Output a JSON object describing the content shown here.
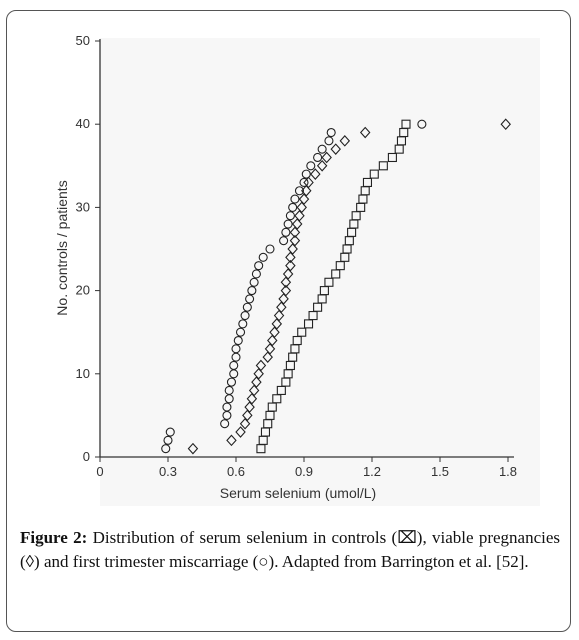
{
  "caption": {
    "label": "Figure 2:",
    "text": " Distribution of serum selenium in controls (⌧), viable pregnancies (◊) and first trimester miscarriage (○). Adapted from Barrington et al. [52]."
  },
  "chart_data": {
    "type": "scatter",
    "title": "",
    "xlabel": "Serum selenium (umol/L)",
    "ylabel": "No. controls / patients",
    "xlim": [
      0,
      1.8
    ],
    "ylim": [
      0,
      50
    ],
    "x_ticks": [
      "0",
      "0.3",
      "0.6",
      "0.9",
      "1.2",
      "1.5",
      "1.8"
    ],
    "y_ticks": [
      "0",
      "10",
      "20",
      "30",
      "40",
      "50"
    ],
    "grid": false,
    "colors": {
      "marker": "#222222",
      "axis": "#333333"
    },
    "series": [
      {
        "marker": "square",
        "points": [
          [
            0.71,
            1
          ],
          [
            0.72,
            2
          ],
          [
            0.73,
            3
          ],
          [
            0.74,
            4
          ],
          [
            0.75,
            5
          ],
          [
            0.76,
            6
          ],
          [
            0.78,
            7
          ],
          [
            0.8,
            8
          ],
          [
            0.82,
            9
          ],
          [
            0.83,
            10
          ],
          [
            0.84,
            11
          ],
          [
            0.85,
            12
          ],
          [
            0.86,
            13
          ],
          [
            0.87,
            14
          ],
          [
            0.89,
            15
          ],
          [
            0.92,
            16
          ],
          [
            0.94,
            17
          ],
          [
            0.96,
            18
          ],
          [
            0.98,
            19
          ],
          [
            0.99,
            20
          ],
          [
            1.01,
            21
          ],
          [
            1.04,
            22
          ],
          [
            1.06,
            23
          ],
          [
            1.08,
            24
          ],
          [
            1.09,
            25
          ],
          [
            1.1,
            26
          ],
          [
            1.11,
            27
          ],
          [
            1.12,
            28
          ],
          [
            1.13,
            29
          ],
          [
            1.15,
            30
          ],
          [
            1.16,
            31
          ],
          [
            1.17,
            32
          ],
          [
            1.18,
            33
          ],
          [
            1.21,
            34
          ],
          [
            1.25,
            35
          ],
          [
            1.29,
            36
          ],
          [
            1.32,
            37
          ],
          [
            1.33,
            38
          ],
          [
            1.34,
            39
          ],
          [
            1.35,
            40
          ]
        ]
      },
      {
        "marker": "diamond",
        "points": [
          [
            0.41,
            1
          ],
          [
            0.58,
            2
          ],
          [
            0.62,
            3
          ],
          [
            0.64,
            4
          ],
          [
            0.65,
            5
          ],
          [
            0.66,
            6
          ],
          [
            0.67,
            7
          ],
          [
            0.68,
            8
          ],
          [
            0.69,
            9
          ],
          [
            0.7,
            10
          ],
          [
            0.71,
            11
          ],
          [
            0.74,
            12
          ],
          [
            0.75,
            13
          ],
          [
            0.76,
            14
          ],
          [
            0.77,
            15
          ],
          [
            0.78,
            16
          ],
          [
            0.79,
            17
          ],
          [
            0.8,
            18
          ],
          [
            0.81,
            19
          ],
          [
            0.82,
            20
          ],
          [
            0.82,
            21
          ],
          [
            0.83,
            22
          ],
          [
            0.84,
            23
          ],
          [
            0.84,
            24
          ],
          [
            0.85,
            25
          ],
          [
            0.86,
            26
          ],
          [
            0.86,
            27
          ],
          [
            0.87,
            28
          ],
          [
            0.88,
            29
          ],
          [
            0.89,
            30
          ],
          [
            0.9,
            31
          ],
          [
            0.91,
            32
          ],
          [
            0.92,
            33
          ],
          [
            0.95,
            34
          ],
          [
            0.98,
            35
          ],
          [
            1.0,
            36
          ],
          [
            1.04,
            37
          ],
          [
            1.08,
            38
          ],
          [
            1.17,
            39
          ],
          [
            1.79,
            40
          ]
        ]
      },
      {
        "marker": "circle",
        "points": [
          [
            0.29,
            1
          ],
          [
            0.3,
            2
          ],
          [
            0.31,
            3
          ],
          [
            0.55,
            4
          ],
          [
            0.56,
            5
          ],
          [
            0.56,
            6
          ],
          [
            0.57,
            7
          ],
          [
            0.57,
            8
          ],
          [
            0.58,
            9
          ],
          [
            0.59,
            10
          ],
          [
            0.59,
            11
          ],
          [
            0.6,
            12
          ],
          [
            0.6,
            13
          ],
          [
            0.61,
            14
          ],
          [
            0.62,
            15
          ],
          [
            0.63,
            16
          ],
          [
            0.64,
            17
          ],
          [
            0.65,
            18
          ],
          [
            0.66,
            19
          ],
          [
            0.67,
            20
          ],
          [
            0.68,
            21
          ],
          [
            0.69,
            22
          ],
          [
            0.7,
            23
          ],
          [
            0.72,
            24
          ],
          [
            0.75,
            25
          ],
          [
            0.81,
            26
          ],
          [
            0.82,
            27
          ],
          [
            0.83,
            28
          ],
          [
            0.84,
            29
          ],
          [
            0.85,
            30
          ],
          [
            0.86,
            31
          ],
          [
            0.88,
            32
          ],
          [
            0.9,
            33
          ],
          [
            0.91,
            34
          ],
          [
            0.93,
            35
          ],
          [
            0.96,
            36
          ],
          [
            0.98,
            37
          ],
          [
            1.01,
            38
          ],
          [
            1.02,
            39
          ],
          [
            1.42,
            40
          ]
        ]
      }
    ]
  }
}
